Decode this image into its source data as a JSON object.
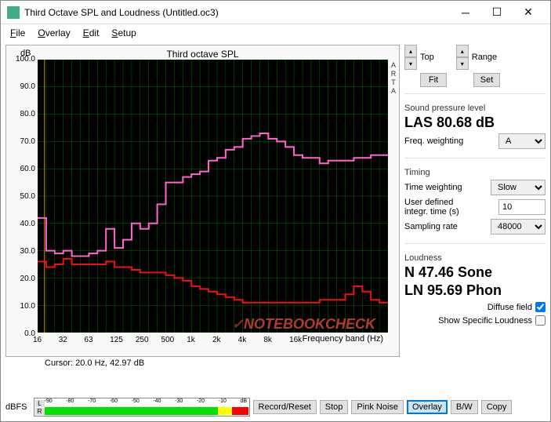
{
  "window": {
    "title": "Third Octave SPL and Loudness (Untitled.oc3)"
  },
  "menu": {
    "file": "File",
    "overlay": "Overlay",
    "edit": "Edit",
    "setup": "Setup"
  },
  "chart": {
    "title": "Third octave SPL",
    "ylabel": "dB",
    "xlabel": "Frequency band (Hz)",
    "arta": "ARTA",
    "background_color": "#000000",
    "grid_color": "#006600",
    "axis_color": "#00ff00",
    "ylim": [
      0,
      100
    ],
    "ytick_step": 10,
    "yticks": [
      "0.0",
      "10.0",
      "20.0",
      "30.0",
      "40.0",
      "50.0",
      "60.0",
      "70.0",
      "80.0",
      "90.0",
      "100.0"
    ],
    "xticks": [
      "16",
      "32",
      "63",
      "125",
      "250",
      "500",
      "1k",
      "2k",
      "4k",
      "8k",
      "16k"
    ],
    "cursor_x_hz": 20.0,
    "series": [
      {
        "name": "pink",
        "color": "#ff66cc",
        "line_width": 2,
        "type": "step-bar",
        "values": [
          42,
          30,
          29,
          30,
          28,
          28,
          29,
          30,
          38,
          31,
          34,
          40,
          38,
          40,
          47,
          55,
          55,
          57,
          58,
          59,
          63,
          64,
          67,
          68,
          71,
          72,
          73,
          71,
          70,
          68,
          65,
          64,
          64,
          62,
          63,
          63,
          63,
          64,
          64,
          65,
          65
        ]
      },
      {
        "name": "red",
        "color": "#ee1111",
        "line_width": 2,
        "type": "step-bar",
        "values": [
          26,
          24,
          25,
          27,
          25,
          25,
          25,
          25,
          26,
          24,
          24,
          23,
          22,
          22,
          22,
          21,
          20,
          19,
          17,
          16,
          15,
          14,
          13,
          12,
          11,
          11,
          11,
          11,
          11,
          11,
          11,
          11,
          11,
          12,
          12,
          12,
          14,
          17,
          15,
          12,
          11
        ]
      }
    ]
  },
  "cursor": {
    "label": "Cursor:  20.0 Hz, 42.97 dB"
  },
  "side": {
    "top_label": "Top",
    "fit_label": "Fit",
    "range_label": "Range",
    "set_label": "Set",
    "spl_title": "Sound pressure level",
    "spl_reading": "LAS 80.68 dB",
    "freq_weighting_label": "Freq. weighting",
    "freq_weighting_value": "A",
    "timing_title": "Timing",
    "time_weighting_label": "Time weighting",
    "time_weighting_value": "Slow",
    "userdef_label": "User defined integr. time (s)",
    "userdef_value": "10",
    "sampling_label": "Sampling rate",
    "sampling_value": "48000",
    "loudness_title": "Loudness",
    "loudness_n": "N 47.46 Sone",
    "loudness_ln": "LN 95.69 Phon",
    "diffuse_label": "Diffuse field",
    "diffuse_checked": true,
    "specific_label": "Show Specific Loudness",
    "specific_checked": false
  },
  "meter": {
    "label": "dBFS",
    "channels": [
      "L",
      "R"
    ],
    "ticks": [
      "-90",
      "-80",
      "-70",
      "-60",
      "-50",
      "-40",
      "-30",
      "-20",
      "-10",
      "dB"
    ]
  },
  "buttons": {
    "record": "Record/Reset",
    "stop": "Stop",
    "pink": "Pink Noise",
    "overlay": "Overlay",
    "bw": "B/W",
    "copy": "Copy"
  },
  "watermark": "NOTEBOOKCHECK"
}
